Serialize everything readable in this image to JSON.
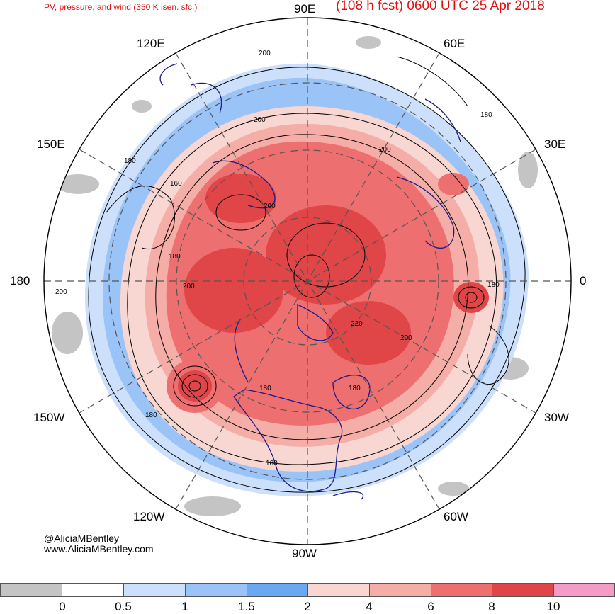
{
  "header": {
    "left_title": "PV, pressure, and wind (350 K isen. sfc.)",
    "right_title": "(108 h fcst) 0600 UTC 25 Apr 2018"
  },
  "longitude_labels": {
    "e90": "90E",
    "e120": "120E",
    "e60": "60E",
    "e150": "150E",
    "e30": "30E",
    "e180": "180",
    "e0": "0",
    "w150": "150W",
    "w30": "30W",
    "w120": "120W",
    "w60": "60W",
    "w90": "90W"
  },
  "contour_labels": [
    "200",
    "180",
    "200",
    "160",
    "180",
    "200",
    "180",
    "200",
    "200",
    "180",
    "200",
    "220",
    "180",
    "180",
    "160",
    "180",
    "200"
  ],
  "credit": {
    "handle": "@AliciaMBentley",
    "website": "www.AliciaMBentley.com"
  },
  "colorbar": {
    "ticks": [
      "0",
      "0.5",
      "1",
      "1.5",
      "2",
      "4",
      "6",
      "8",
      "10"
    ],
    "colors": [
      "#c4c4c4",
      "#ffffff",
      "#cce0fb",
      "#9ac3f7",
      "#6aa8f2",
      "#f8d6d2",
      "#f5ada7",
      "#ee6f70",
      "#e04548",
      "#f49bc7"
    ]
  },
  "map_colors": {
    "ocean_background": "#ffffff",
    "coastline": "#1a1a8c",
    "contour": "#000000",
    "grid": "#555555"
  }
}
